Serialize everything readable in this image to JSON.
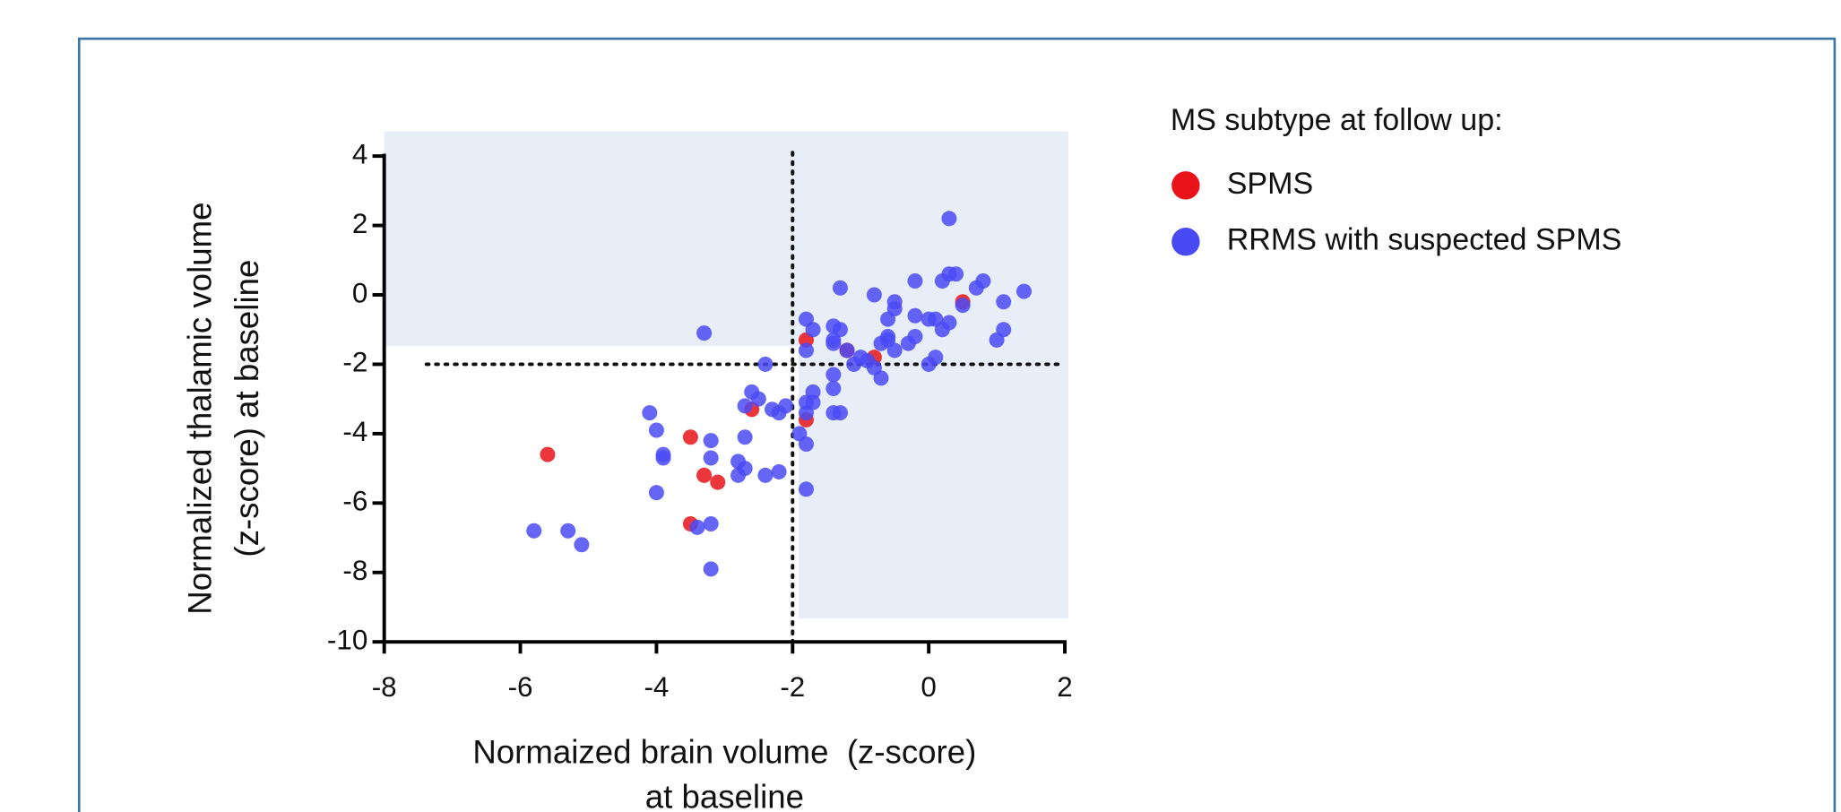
{
  "chart_data": {
    "type": "scatter",
    "xlabel": [
      "Normaized brain volume  (z-score)",
      "at baseline"
    ],
    "ylabel": [
      "Normalized thalamic volume",
      "(z-score) at baseline"
    ],
    "legend_title": "MS subtype at follow up:",
    "xlim": [
      -8,
      2
    ],
    "xticks": [
      -8,
      -6,
      -4,
      -2,
      0,
      2
    ],
    "ylim": [
      -10,
      4
    ],
    "yticks": [
      -10,
      -8,
      -6,
      -4,
      -2,
      0,
      2,
      4
    ],
    "reference_lines": {
      "x": [
        -2
      ],
      "y": [
        -2
      ]
    },
    "series": [
      {
        "name": "SPMS",
        "color": "#e8141a",
        "x": [
          -5.6,
          -3.5,
          -3.3,
          -3.1,
          -3.5,
          -2.6,
          -1.8,
          -1.8,
          -1.2,
          -0.8,
          0.5
        ],
        "y": [
          -4.6,
          -4.1,
          -5.2,
          -5.4,
          -6.6,
          -3.3,
          -1.3,
          -3.6,
          -1.6,
          -1.8,
          -0.2
        ]
      },
      {
        "name": "RRMS with suspected SPMS",
        "color": "#4a4af5",
        "x": [
          -5.8,
          -5.3,
          -5.1,
          -4.1,
          -4.0,
          -3.9,
          -3.9,
          -4.0,
          -3.3,
          -3.4,
          -3.2,
          -3.2,
          -3.2,
          -3.2,
          -2.8,
          -2.7,
          -2.8,
          -2.7,
          -2.6,
          -2.7,
          -2.5,
          -2.4,
          -2.4,
          -2.2,
          -2.3,
          -2.2,
          -2.1,
          -1.9,
          -1.8,
          -1.8,
          -1.8,
          -1.7,
          -1.8,
          -1.7,
          -1.8,
          -1.7,
          -1.8,
          -1.4,
          -1.4,
          -1.3,
          -1.3,
          -1.4,
          -1.4,
          -1.4,
          -1.3,
          -1.4,
          -1.2,
          -1.1,
          -1.0,
          -0.9,
          -0.8,
          -0.7,
          -0.7,
          -0.8,
          -0.6,
          -0.5,
          -0.5,
          -0.6,
          -0.5,
          -0.6,
          -0.3,
          -0.2,
          -0.2,
          -0.2,
          0.0,
          0.1,
          0.0,
          0.1,
          0.2,
          0.2,
          0.3,
          0.3,
          0.4,
          0.3,
          0.5,
          0.7,
          0.8,
          1.0,
          1.1,
          1.1,
          1.4
        ],
        "y": [
          -6.8,
          -6.8,
          -7.2,
          -3.4,
          -3.9,
          -4.6,
          -4.7,
          -5.7,
          -1.1,
          -6.7,
          -6.6,
          -4.2,
          -4.7,
          -7.9,
          -4.8,
          -4.1,
          -5.2,
          -5.0,
          -2.8,
          -3.2,
          -3.0,
          -2.0,
          -5.2,
          -5.1,
          -3.3,
          -3.4,
          -3.2,
          -4.0,
          -4.3,
          -5.6,
          -3.1,
          -2.8,
          -3.4,
          -3.1,
          -0.7,
          -1.0,
          -1.6,
          -1.3,
          -0.9,
          -1.0,
          0.2,
          -2.3,
          -2.7,
          -3.4,
          -3.4,
          -1.4,
          -1.6,
          -2.0,
          -1.8,
          -1.9,
          0.0,
          -1.4,
          -2.4,
          -2.1,
          -0.7,
          -0.4,
          -0.2,
          -1.3,
          -1.6,
          -1.2,
          -1.4,
          -1.2,
          -0.6,
          0.4,
          -0.7,
          -0.7,
          -2.0,
          -1.8,
          -1.0,
          0.4,
          0.6,
          -0.8,
          0.6,
          2.2,
          -0.3,
          0.2,
          0.4,
          -1.3,
          -1.0,
          -0.2,
          0.1
        ]
      }
    ]
  }
}
